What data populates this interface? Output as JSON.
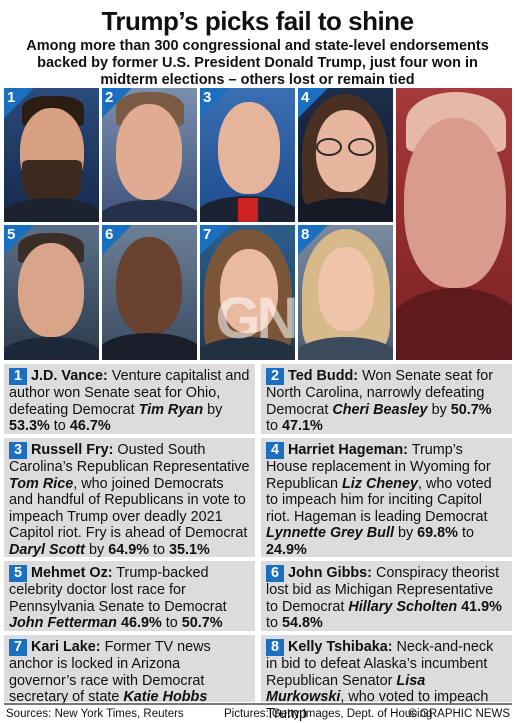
{
  "header": {
    "title": "Trump’s picks fail to shine",
    "subtitle": "Among more than 300 congressional and state-level endorsements backed by former U.S. President Donald Trump, just four won in midterm elections – others lost or remain tied"
  },
  "photos": [
    {
      "num": "1",
      "name": "J.D. Vance"
    },
    {
      "num": "2",
      "name": "Ted Budd"
    },
    {
      "num": "3",
      "name": "Russell Fry"
    },
    {
      "num": "4",
      "name": "Harriet Hageman"
    },
    {
      "num": "5",
      "name": "Mehmet Oz"
    },
    {
      "num": "6",
      "name": "John Gibbs"
    },
    {
      "num": "7",
      "name": "Kari Lake"
    },
    {
      "num": "8",
      "name": "Kelly Tshibaka"
    }
  ],
  "watermark": "GN",
  "entries": [
    {
      "num": "1",
      "name": "J.D. Vance:",
      "t1": " Venture capitalist and author won Senate seat for Ohio, defeating Democrat ",
      "i1": "Tim Ryan",
      "t2": " by ",
      "b1": "53.3%",
      "t3": " to ",
      "b2": "46.7%",
      "t4": ""
    },
    {
      "num": "2",
      "name": "Ted Budd:",
      "t1": " Won Senate seat for North Carolina, narrowly defeating Democrat ",
      "i1": "Cheri Beasley",
      "t2": " by ",
      "b1": "50.7%",
      "t3": " to ",
      "b2": "47.1%",
      "t4": ""
    },
    {
      "num": "3",
      "name": "Russell Fry:",
      "t1": " Ousted South Carolina’s Republican Representative ",
      "i1": "Tom Rice",
      "t2": ", who joined Democrats and handful of Republicans in vote to impeach Trump over deadly 2021 Capitol riot. Fry is ahead of Democrat ",
      "i2": "Daryl Scott",
      "t3": " by ",
      "b1": "64.9%",
      "t4": " to ",
      "b2": "35.1%"
    },
    {
      "num": "4",
      "name": "Harriet Hageman:",
      "t1": " Trump’s House replacement in Wyoming for Republican ",
      "i1": "Liz Cheney",
      "t2": ", who voted to impeach him for inciting Capitol riot. Hageman is leading Democrat ",
      "i2": "Lynnette Grey Bull",
      "t3": " by ",
      "b1": "69.8%",
      "t4": " to ",
      "b2": "24.9%"
    },
    {
      "num": "5",
      "name": "Mehmet Oz:",
      "t1": " Trump-backed celebrity doctor lost race for Pennsylvania Senate to Democrat ",
      "i1": "John Fetterman",
      "t2": " ",
      "b1": "46.9%",
      "t3": " to ",
      "b2": "50.7%",
      "t4": ""
    },
    {
      "num": "6",
      "name": "John Gibbs:",
      "t1": " Conspiracy theorist lost bid as Michigan Representative to Democrat ",
      "i1": "Hillary Scholten",
      "t2": " ",
      "b1": "41.9%",
      "t3": " to ",
      "b2": "54.8%",
      "t4": ""
    },
    {
      "num": "7",
      "name": "Kari Lake:",
      "t1": " Former TV news anchor is locked in Arizona governor’s race with Democrat secretary of state ",
      "i1": "Katie Hobbs",
      "t2": "",
      "b1": "",
      "t3": "",
      "b2": "",
      "t4": ""
    },
    {
      "num": "8",
      "name": "Kelly Tshibaka:",
      "t1": " Neck-and-neck in bid to defeat Alaska’s incumbent Republican Senator ",
      "i1": "Lisa Murkowski",
      "t2": ", who voted to impeach Trump",
      "b1": "",
      "t3": "",
      "b2": "",
      "t4": ""
    }
  ],
  "footer": {
    "sources": "Sources: New York Times, Reuters",
    "pictures": "Pictures: Getty Images, Dept. of Housing",
    "credit": "© GRAPHIC NEWS"
  },
  "colors": {
    "accent": "#1a6fc0",
    "panel": "#dcdcdc"
  }
}
